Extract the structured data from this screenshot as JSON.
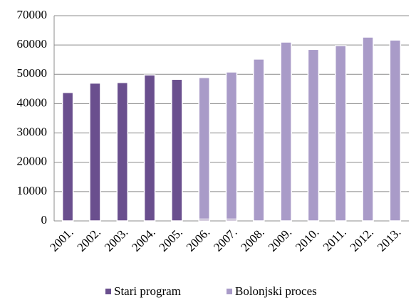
{
  "chart_data": {
    "type": "bar",
    "stacked": true,
    "categories": [
      "2001.",
      "2002.",
      "2003.",
      "2004.",
      "2005.",
      "2006.",
      "2007.",
      "2008.",
      "2009.",
      "2010.",
      "2011.",
      "2012.",
      "2013."
    ],
    "series": [
      {
        "name": "Stari program",
        "color": "#6a4f8e",
        "values": [
          43800,
          47000,
          47200,
          49800,
          48300,
          600,
          600,
          null,
          null,
          null,
          null,
          null,
          null
        ]
      },
      {
        "name": "Bolonjski proces",
        "color": "#a99bc8",
        "values": [
          null,
          null,
          null,
          null,
          null,
          48300,
          50200,
          55200,
          61000,
          58500,
          59800,
          62700,
          61700
        ]
      }
    ],
    "ylim": [
      0,
      70000
    ],
    "yticks": [
      0,
      10000,
      20000,
      30000,
      40000,
      50000,
      60000,
      70000
    ],
    "grid": true,
    "legend": "bottom"
  }
}
